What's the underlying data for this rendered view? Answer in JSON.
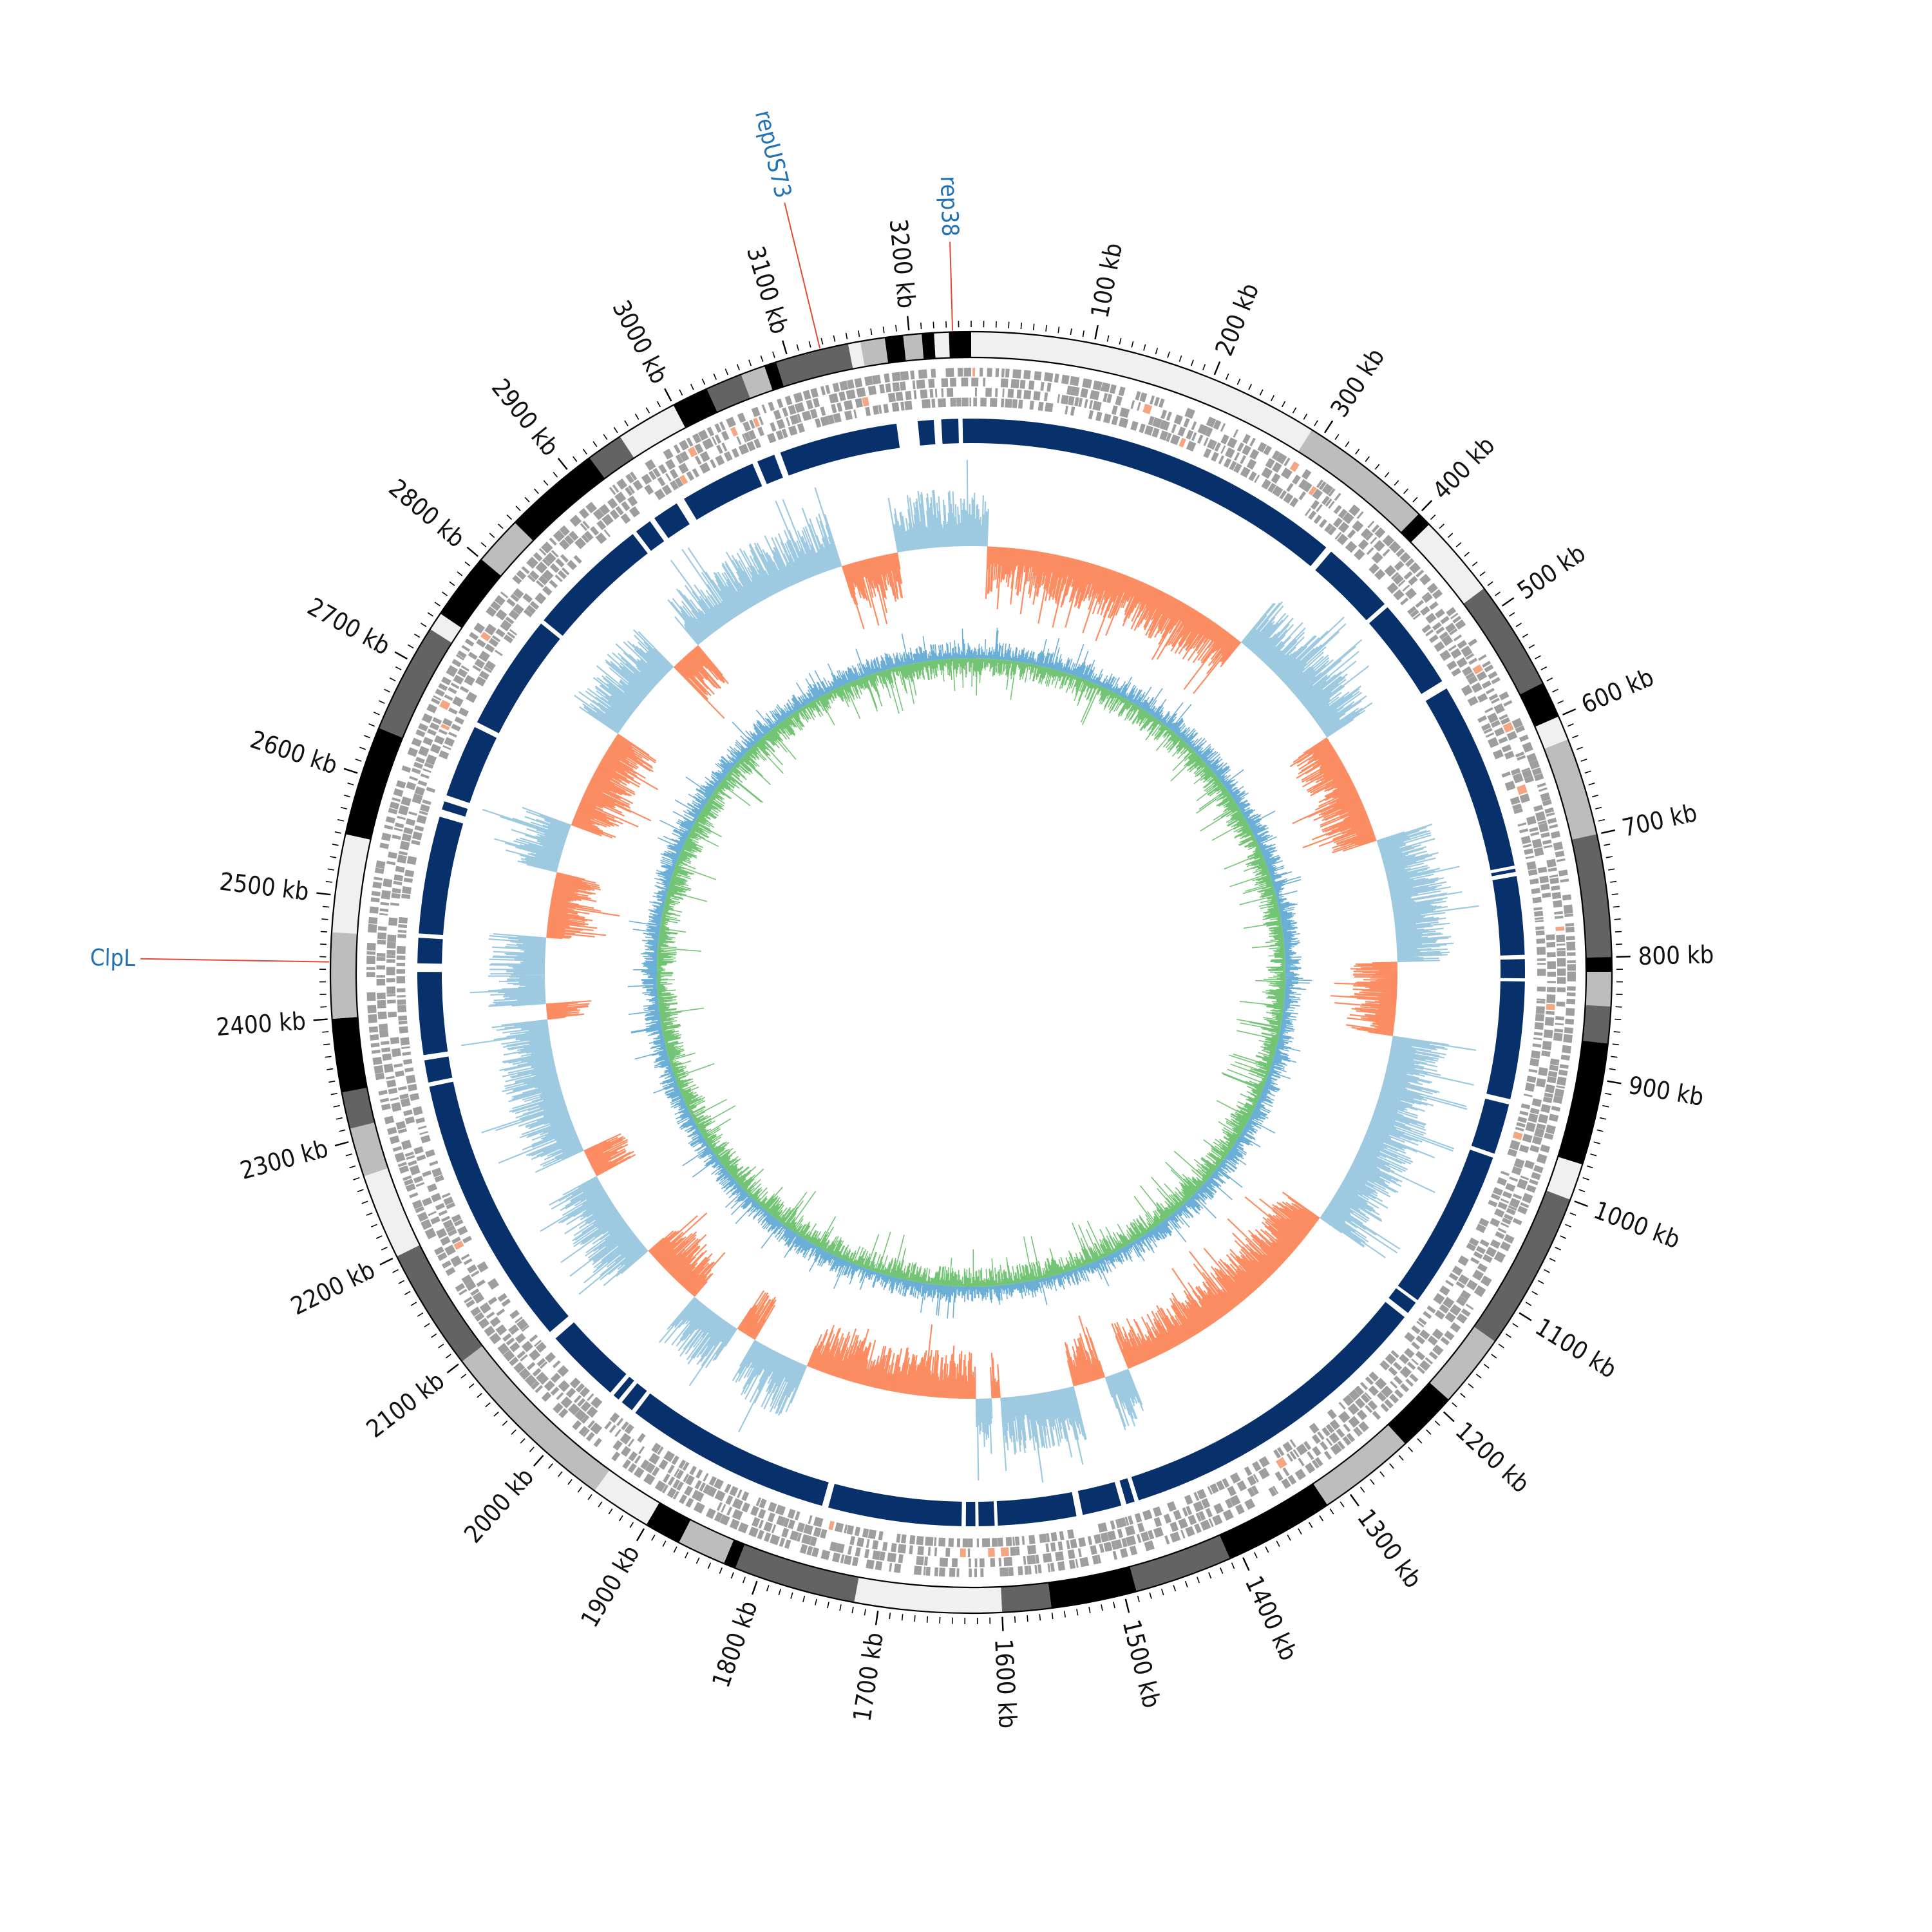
{
  "genome": {
    "length_kb": 3250,
    "orientation": "clockwise-from-top"
  },
  "scale": {
    "unit": "kb",
    "major_ticks": [
      100,
      200,
      300,
      400,
      500,
      600,
      700,
      800,
      900,
      1000,
      1100,
      1200,
      1300,
      1400,
      1500,
      1600,
      1700,
      1800,
      1900,
      2000,
      2100,
      2200,
      2300,
      2400,
      2500,
      2600,
      2700,
      2800,
      2900,
      3000,
      3100,
      3200
    ],
    "minor_tick_step_kb": 10
  },
  "tracks": {
    "contigs": {
      "palette": [
        "#f0f0f0",
        "#bdbdbd",
        "#636363",
        "#000000"
      ],
      "segments": [
        [
          0,
          290,
          0
        ],
        [
          290,
          400,
          1
        ],
        [
          400,
          412,
          3
        ],
        [
          412,
          480,
          0
        ],
        [
          480,
          570,
          2
        ],
        [
          570,
          600,
          3
        ],
        [
          600,
          620,
          0
        ],
        [
          620,
          700,
          1
        ],
        [
          700,
          800,
          2
        ],
        [
          800,
          812,
          3
        ],
        [
          812,
          840,
          1
        ],
        [
          840,
          870,
          2
        ],
        [
          870,
          970,
          3
        ],
        [
          970,
          1000,
          0
        ],
        [
          1000,
          1130,
          2
        ],
        [
          1130,
          1190,
          1
        ],
        [
          1190,
          1240,
          3
        ],
        [
          1240,
          1320,
          1
        ],
        [
          1320,
          1410,
          3
        ],
        [
          1410,
          1490,
          2
        ],
        [
          1490,
          1560,
          3
        ],
        [
          1560,
          1600,
          2
        ],
        [
          1600,
          1720,
          0
        ],
        [
          1720,
          1820,
          2
        ],
        [
          1820,
          1830,
          3
        ],
        [
          1830,
          1870,
          1
        ],
        [
          1870,
          1900,
          3
        ],
        [
          1900,
          1950,
          0
        ],
        [
          1950,
          2100,
          1
        ],
        [
          2100,
          2200,
          2
        ],
        [
          2200,
          2270,
          0
        ],
        [
          2270,
          2310,
          1
        ],
        [
          2310,
          2340,
          2
        ],
        [
          2340,
          2400,
          3
        ],
        [
          2400,
          2470,
          1
        ],
        [
          2470,
          2550,
          0
        ],
        [
          2550,
          2640,
          3
        ],
        [
          2640,
          2730,
          2
        ],
        [
          2730,
          2745,
          0
        ],
        [
          2745,
          2800,
          3
        ],
        [
          2800,
          2840,
          1
        ],
        [
          2840,
          2920,
          3
        ],
        [
          2920,
          2950,
          2
        ],
        [
          2950,
          3000,
          0
        ],
        [
          3000,
          3030,
          3
        ],
        [
          3030,
          3060,
          2
        ],
        [
          3060,
          3080,
          1
        ],
        [
          3080,
          3090,
          3
        ],
        [
          3090,
          3150,
          2
        ],
        [
          3150,
          3160,
          0
        ],
        [
          3160,
          3180,
          1
        ],
        [
          3180,
          3195,
          3
        ],
        [
          3195,
          3210,
          1
        ],
        [
          3210,
          3220,
          3
        ],
        [
          3220,
          3232,
          0
        ],
        [
          3232,
          3250,
          3
        ]
      ]
    },
    "features": {
      "color": "#9e9e9e",
      "highlight_color": "#f4a582"
    },
    "backbone": {
      "color": "#08306b",
      "gaps_kb": [
        [
          3238,
          3242
        ],
        [
          3215,
          3222
        ],
        [
          3180,
          3200
        ],
        [
          3062,
          3068
        ],
        [
          3040,
          3045
        ],
        [
          2960,
          2968
        ],
        [
          2930,
          2935
        ],
        [
          2910,
          2914
        ],
        [
          2790,
          2794
        ],
        [
          2675,
          2680
        ],
        [
          2600,
          2606
        ],
        [
          2585,
          2592
        ],
        [
          2470,
          2474
        ],
        [
          2438,
          2446
        ],
        [
          2355,
          2360
        ],
        [
          2330,
          2334
        ],
        [
          2064,
          2072
        ],
        [
          1988,
          1992
        ],
        [
          1978,
          1982
        ],
        [
          1962,
          1966
        ],
        [
          1760,
          1766
        ],
        [
          1630,
          1634
        ],
        [
          1618,
          1621
        ],
        [
          1600,
          1603
        ],
        [
          1520,
          1526
        ],
        [
          1478,
          1483
        ],
        [
          1466,
          1470
        ],
        [
          1155,
          1160
        ],
        [
          1140,
          1143
        ],
        [
          985,
          989
        ],
        [
          932,
          937
        ],
        [
          796,
          800
        ],
        [
          818,
          821
        ],
        [
          718,
          722
        ],
        [
          712,
          715
        ],
        [
          526,
          534
        ],
        [
          436,
          440
        ],
        [
          360,
          366
        ]
      ]
    },
    "gc_skew": {
      "positive_color": "#9ecae1",
      "negative_color": "#fc8d62",
      "positive_regions_kb": [
        [
          0,
          20
        ],
        [
          355,
          510
        ],
        [
          650,
          800
        ],
        [
          890,
          1130
        ],
        [
          1430,
          1460
        ],
        [
          1500,
          1590
        ],
        [
          1600,
          1620
        ],
        [
          1830,
          1900
        ],
        [
          1925,
          1990
        ],
        [
          2070,
          2180
        ],
        [
          2215,
          2380
        ],
        [
          2400,
          2480
        ],
        [
          2560,
          2620
        ],
        [
          2745,
          2850
        ],
        [
          2890,
          3090
        ],
        [
          3160,
          3250
        ]
      ],
      "negative_regions_kb": [
        [
          20,
          355
        ],
        [
          510,
          650
        ],
        [
          800,
          890
        ],
        [
          1130,
          1430
        ],
        [
          1460,
          1500
        ],
        [
          1590,
          1600
        ],
        [
          1620,
          1830
        ],
        [
          1900,
          1925
        ],
        [
          1990,
          2070
        ],
        [
          2180,
          2215
        ],
        [
          2380,
          2400
        ],
        [
          2480,
          2560
        ],
        [
          2620,
          2745
        ],
        [
          2850,
          2890
        ],
        [
          3090,
          3160
        ]
      ]
    },
    "gc_content": {
      "line_color": "#6baed6",
      "fill_color": "#74c476"
    }
  },
  "gene_labels": [
    {
      "text": "rep38",
      "position_kb": 3235,
      "color": "#2171b5",
      "line_color": "#e34a33"
    },
    {
      "text": "repUS73",
      "position_kb": 3127,
      "color": "#2171b5",
      "line_color": "#e34a33"
    },
    {
      "text": "ClpL",
      "position_kb": 2446,
      "color": "#2171b5",
      "line_color": "#e34a33"
    }
  ]
}
